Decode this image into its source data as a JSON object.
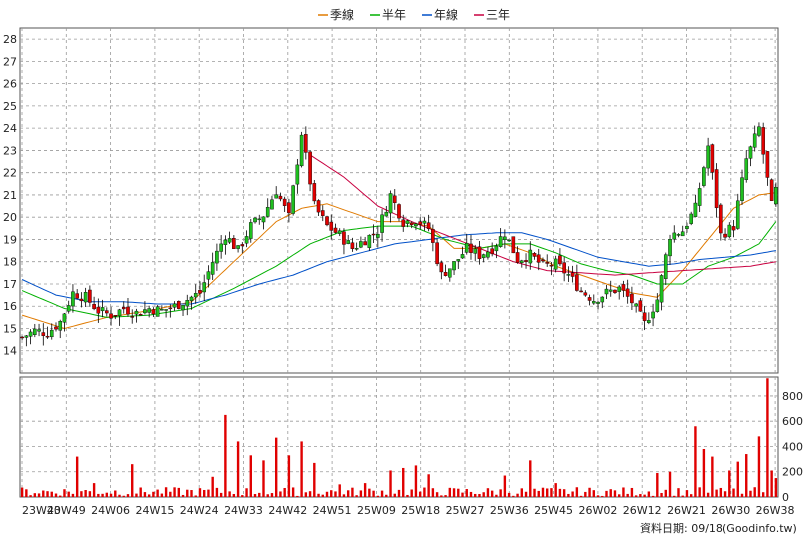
{
  "chart_data": {
    "type": "candlestick",
    "legend": [
      {
        "name": "季線",
        "color": "#e07a00"
      },
      {
        "name": "半年",
        "color": "#00b000"
      },
      {
        "name": "年線",
        "color": "#0050c8"
      },
      {
        "name": "三年",
        "color": "#c80040"
      }
    ],
    "x_labels": [
      "23W40",
      "23W49",
      "24W06",
      "24W15",
      "24W24",
      "24W33",
      "24W42",
      "24W51",
      "25W09",
      "25W18",
      "25W27",
      "25W36",
      "25W45",
      "26W02",
      "26W12",
      "26W21",
      "26W30",
      "26W38"
    ],
    "price_axis": {
      "min": 13,
      "max": 28.5,
      "ticks": [
        14,
        15,
        16,
        17,
        18,
        19,
        20,
        21,
        22,
        23,
        24,
        25,
        26,
        27,
        28
      ]
    },
    "volume_axis": {
      "min": 0,
      "max": 950,
      "ticks": [
        0,
        200,
        400,
        600,
        800
      ]
    },
    "grid": true,
    "colors": {
      "up": "#1fbf1f",
      "down": "#e00000",
      "grid": "#9a9a9a",
      "volume": "#e00000"
    },
    "price_anchors": [
      [
        0,
        14.6
      ],
      [
        3,
        14.9
      ],
      [
        6,
        14.8
      ],
      [
        9,
        15.3
      ],
      [
        12,
        16.6
      ],
      [
        15,
        16.4
      ],
      [
        18,
        15.8
      ],
      [
        21,
        15.6
      ],
      [
        24,
        15.9
      ],
      [
        27,
        15.7
      ],
      [
        30,
        15.9
      ],
      [
        33,
        15.8
      ],
      [
        36,
        16.0
      ],
      [
        39,
        16.3
      ],
      [
        42,
        16.6
      ],
      [
        45,
        18.0
      ],
      [
        48,
        19.2
      ],
      [
        51,
        18.5
      ],
      [
        54,
        19.6
      ],
      [
        57,
        20.1
      ],
      [
        60,
        21.2
      ],
      [
        63,
        20.0
      ],
      [
        66,
        23.8
      ],
      [
        69,
        20.5
      ],
      [
        72,
        19.6
      ],
      [
        75,
        19.2
      ],
      [
        78,
        18.6
      ],
      [
        81,
        19.0
      ],
      [
        84,
        19.4
      ],
      [
        87,
        21.0
      ],
      [
        90,
        19.8
      ],
      [
        93,
        19.9
      ],
      [
        96,
        19.5
      ],
      [
        99,
        17.4
      ],
      [
        102,
        17.9
      ],
      [
        105,
        18.6
      ],
      [
        108,
        18.3
      ],
      [
        111,
        18.6
      ],
      [
        114,
        19.3
      ],
      [
        117,
        18.1
      ],
      [
        120,
        18.3
      ],
      [
        123,
        17.8
      ],
      [
        126,
        17.9
      ],
      [
        129,
        17.4
      ],
      [
        132,
        16.7
      ],
      [
        135,
        16.3
      ],
      [
        138,
        16.6
      ],
      [
        141,
        16.8
      ],
      [
        144,
        16.2
      ],
      [
        147,
        15.2
      ],
      [
        150,
        16.3
      ],
      [
        153,
        19.2
      ],
      [
        156,
        19.4
      ],
      [
        159,
        20.4
      ],
      [
        162,
        23.2
      ],
      [
        165,
        19.2
      ],
      [
        168,
        19.6
      ],
      [
        171,
        22.6
      ],
      [
        174,
        24.0
      ],
      [
        177,
        20.5
      ],
      [
        178,
        21.2
      ]
    ],
    "ma_series": [
      {
        "name": "季線",
        "color": "#e07a00",
        "anchors": [
          [
            0,
            15.6
          ],
          [
            10,
            15.0
          ],
          [
            20,
            15.5
          ],
          [
            30,
            15.8
          ],
          [
            40,
            16.2
          ],
          [
            50,
            18.0
          ],
          [
            60,
            19.8
          ],
          [
            66,
            20.4
          ],
          [
            72,
            20.6
          ],
          [
            78,
            20.2
          ],
          [
            84,
            19.8
          ],
          [
            90,
            19.8
          ],
          [
            96,
            19.6
          ],
          [
            102,
            18.6
          ],
          [
            108,
            18.6
          ],
          [
            114,
            18.8
          ],
          [
            120,
            18.4
          ],
          [
            126,
            17.8
          ],
          [
            132,
            17.4
          ],
          [
            138,
            17.0
          ],
          [
            144,
            16.6
          ],
          [
            150,
            16.4
          ],
          [
            156,
            17.6
          ],
          [
            162,
            19.0
          ],
          [
            168,
            20.4
          ],
          [
            174,
            21.0
          ],
          [
            178,
            21.1
          ]
        ]
      },
      {
        "name": "半年",
        "color": "#00b000",
        "anchors": [
          [
            0,
            16.7
          ],
          [
            10,
            15.9
          ],
          [
            20,
            15.5
          ],
          [
            30,
            15.6
          ],
          [
            40,
            15.9
          ],
          [
            50,
            16.8
          ],
          [
            60,
            17.8
          ],
          [
            68,
            18.8
          ],
          [
            76,
            19.4
          ],
          [
            84,
            19.6
          ],
          [
            92,
            19.6
          ],
          [
            100,
            19.0
          ],
          [
            108,
            18.6
          ],
          [
            114,
            18.8
          ],
          [
            120,
            18.8
          ],
          [
            126,
            18.4
          ],
          [
            132,
            17.9
          ],
          [
            138,
            17.6
          ],
          [
            144,
            17.4
          ],
          [
            150,
            17.0
          ],
          [
            156,
            17.0
          ],
          [
            162,
            17.8
          ],
          [
            168,
            18.2
          ],
          [
            174,
            18.8
          ],
          [
            178,
            19.8
          ]
        ]
      },
      {
        "name": "年線",
        "color": "#0050c8",
        "anchors": [
          [
            0,
            17.2
          ],
          [
            8,
            16.5
          ],
          [
            16,
            16.2
          ],
          [
            24,
            16.2
          ],
          [
            32,
            16.1
          ],
          [
            40,
            16.1
          ],
          [
            48,
            16.5
          ],
          [
            56,
            17.0
          ],
          [
            64,
            17.4
          ],
          [
            72,
            18.0
          ],
          [
            80,
            18.4
          ],
          [
            88,
            18.8
          ],
          [
            96,
            19.0
          ],
          [
            104,
            19.2
          ],
          [
            112,
            19.3
          ],
          [
            118,
            19.3
          ],
          [
            124,
            19.0
          ],
          [
            130,
            18.6
          ],
          [
            136,
            18.2
          ],
          [
            142,
            18.0
          ],
          [
            148,
            17.8
          ],
          [
            154,
            17.9
          ],
          [
            160,
            18.1
          ],
          [
            166,
            18.2
          ],
          [
            172,
            18.3
          ],
          [
            178,
            18.5
          ]
        ]
      },
      {
        "name": "三年",
        "color": "#c80040",
        "anchors": [
          [
            68,
            22.8
          ],
          [
            76,
            21.8
          ],
          [
            84,
            20.5
          ],
          [
            92,
            19.8
          ],
          [
            100,
            19.2
          ],
          [
            108,
            18.6
          ],
          [
            116,
            18.0
          ],
          [
            124,
            17.6
          ],
          [
            132,
            17.5
          ],
          [
            140,
            17.4
          ],
          [
            148,
            17.5
          ],
          [
            156,
            17.6
          ],
          [
            164,
            17.7
          ],
          [
            172,
            17.8
          ],
          [
            178,
            18.0
          ]
        ]
      }
    ],
    "volume_spikes": [
      [
        13,
        320
      ],
      [
        17,
        110
      ],
      [
        26,
        260
      ],
      [
        45,
        160
      ],
      [
        48,
        650
      ],
      [
        51,
        440
      ],
      [
        54,
        330
      ],
      [
        57,
        290
      ],
      [
        60,
        470
      ],
      [
        63,
        330
      ],
      [
        66,
        440
      ],
      [
        69,
        270
      ],
      [
        75,
        100
      ],
      [
        81,
        110
      ],
      [
        87,
        210
      ],
      [
        90,
        230
      ],
      [
        93,
        250
      ],
      [
        96,
        180
      ],
      [
        114,
        170
      ],
      [
        120,
        290
      ],
      [
        126,
        110
      ],
      [
        150,
        190
      ],
      [
        153,
        200
      ],
      [
        159,
        560
      ],
      [
        161,
        380
      ],
      [
        163,
        320
      ],
      [
        167,
        210
      ],
      [
        169,
        280
      ],
      [
        171,
        340
      ],
      [
        174,
        480
      ],
      [
        176,
        940
      ],
      [
        177,
        210
      ],
      [
        178,
        150
      ]
    ],
    "footer": {
      "date": "資料日期: 09/18",
      "source": "(Goodinfo.tw)"
    }
  }
}
